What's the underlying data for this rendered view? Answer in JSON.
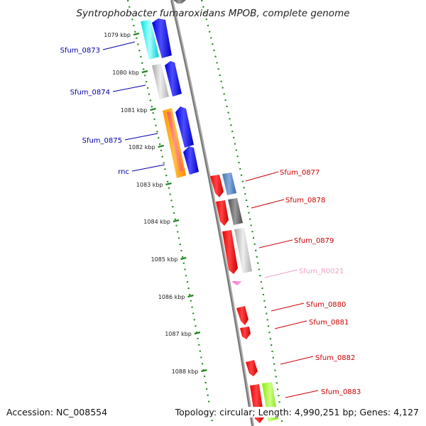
{
  "title": "Syntrophobacter fumaroxidans MPOB, complete genome",
  "kbp_ticks": [
    {
      "label": "1079 kbp",
      "kbp": 1079
    },
    {
      "label": "1080 kbp",
      "kbp": 1080
    },
    {
      "label": "1081 kbp",
      "kbp": 1081
    },
    {
      "label": "1082 kbp",
      "kbp": 1082
    },
    {
      "label": "1083 kbp",
      "kbp": 1083
    },
    {
      "label": "1084 kbp",
      "kbp": 1084
    },
    {
      "label": "1085 kbp",
      "kbp": 1085
    },
    {
      "label": "1086 kbp",
      "kbp": 1086
    },
    {
      "label": "1087 kbp",
      "kbp": 1087
    },
    {
      "label": "1088 kbp",
      "kbp": 1088
    }
  ],
  "left_strand_labels": [
    {
      "text": "Sfum_0873",
      "color": "#0000aa"
    },
    {
      "text": "Sfum_0874",
      "color": "#0000aa"
    },
    {
      "text": "Sfum_0875",
      "color": "#0000aa"
    },
    {
      "text": "rnc",
      "color": "#0000aa"
    }
  ],
  "right_strand_labels": [
    {
      "text": "Sfum_0877",
      "color": "#cc0000"
    },
    {
      "text": "Sfum_0878",
      "color": "#cc0000"
    },
    {
      "text": "Sfum_0879",
      "color": "#cc0000"
    },
    {
      "text": "Sfum_R0021",
      "color": "#f0a0c8"
    },
    {
      "text": "Sfum_0880",
      "color": "#cc0000"
    },
    {
      "text": "Sfum_0881",
      "color": "#cc0000"
    },
    {
      "text": "Sfum_0882",
      "color": "#cc0000"
    },
    {
      "text": "Sfum_0883",
      "color": "#cc0000"
    }
  ],
  "colors": {
    "forward_gene": "#ff0000",
    "reverse_gene": "#0000ff",
    "tick_marks": "#228822",
    "backbone": "#888888"
  },
  "footer": {
    "accession": "Accession: NC_008554",
    "topology": "Topology: circular; Length: 4,990,251 bp; Genes: 4,127"
  }
}
